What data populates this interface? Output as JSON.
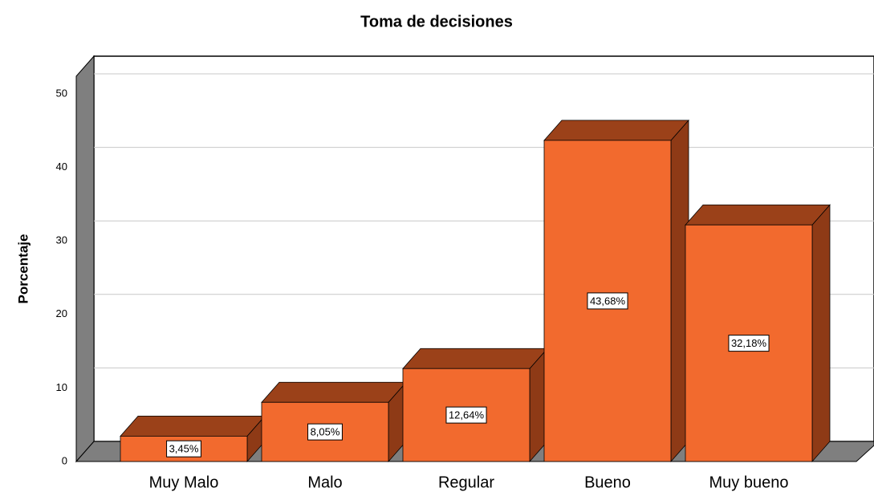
{
  "chart_data": {
    "type": "bar3d",
    "title": "Toma de decisiones",
    "ylabel": "Porcentaje",
    "categories": [
      "Muy Malo",
      "Malo",
      "Regular",
      "Bueno",
      "Muy bueno"
    ],
    "values": [
      3.45,
      8.05,
      12.64,
      43.68,
      32.18
    ],
    "value_labels": [
      "3,45%",
      "8,05%",
      "12,64%",
      "43,68%",
      "32,18%"
    ],
    "color": "#f26a2e",
    "ylim": [
      0,
      52.4
    ],
    "yticks": [
      0,
      10,
      20,
      30,
      40,
      50
    ],
    "grid": true
  }
}
